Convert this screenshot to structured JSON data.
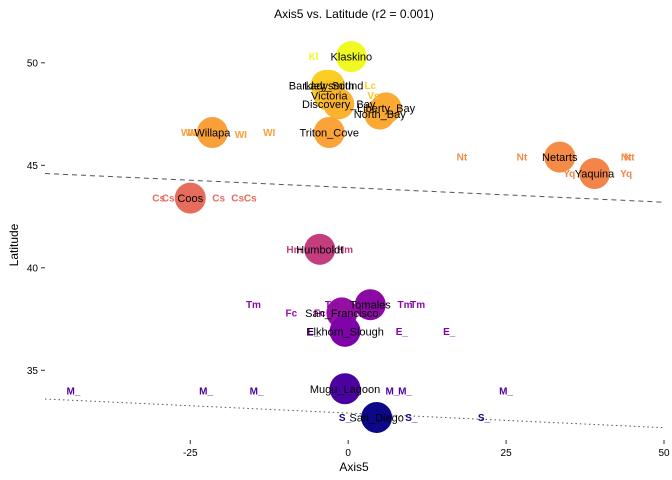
{
  "chart_data": {
    "type": "scatter",
    "title": "Axis5 vs. Latitude (r2 = 0.001)",
    "xlabel": "Axis5",
    "ylabel": "Latitude",
    "xlim": [
      -48,
      50
    ],
    "ylim": [
      31.6,
      51.6
    ],
    "x_ticks": [
      -25,
      0,
      25,
      50
    ],
    "y_ticks": [
      35,
      40,
      45,
      50
    ],
    "grid": false,
    "fit_lines": [
      {
        "style": "dashed",
        "y_at_xmin": 44.6,
        "y_at_xmax": 43.2
      },
      {
        "style": "dotted",
        "y_at_xmin": 33.6,
        "y_at_xmax": 32.2
      }
    ],
    "points": [
      {
        "label": "Klaskino",
        "x": 0.5,
        "y": 50.3,
        "color": "#f0f921"
      },
      {
        "label": "Barkley_Sound",
        "x": -3.5,
        "y": 48.9,
        "color": "#fcce25"
      },
      {
        "label": "Ladysmith",
        "x": -3.0,
        "y": 48.9,
        "color": "#fcce25"
      },
      {
        "label": "Victoria",
        "x": -3.0,
        "y": 48.4,
        "color": "#fcc328"
      },
      {
        "label": "Discovery_Bay",
        "x": -1.5,
        "y": 48.0,
        "color": "#fbb32f"
      },
      {
        "label": "Liberty_Bay",
        "x": 6.0,
        "y": 47.8,
        "color": "#faa932"
      },
      {
        "label": "North_Bay",
        "x": 5.0,
        "y": 47.5,
        "color": "#faa932"
      },
      {
        "label": "Willapa",
        "x": -21.5,
        "y": 46.6,
        "color": "#f9a03b"
      },
      {
        "label": "Triton_Cove",
        "x": -3.0,
        "y": 46.6,
        "color": "#fba238"
      },
      {
        "label": "Netarts",
        "x": 33.5,
        "y": 45.4,
        "color": "#f58c46"
      },
      {
        "label": "Yaquina",
        "x": 39.0,
        "y": 44.6,
        "color": "#f3854b"
      },
      {
        "label": "Coos",
        "x": -25.0,
        "y": 43.4,
        "color": "#e66c5c"
      },
      {
        "label": "Humboldt",
        "x": -4.5,
        "y": 40.9,
        "color": "#c43e7f"
      },
      {
        "label": "Tomales",
        "x": 3.5,
        "y": 38.2,
        "color": "#8b0aa5"
      },
      {
        "label": "San_Francisco",
        "x": -1.0,
        "y": 37.8,
        "color": "#9410a2"
      },
      {
        "label": "Elkhorn_Slough",
        "x": -0.5,
        "y": 36.9,
        "color": "#7e03a8"
      },
      {
        "label": "Mugu_Lagoon",
        "x": -0.5,
        "y": 34.1,
        "color": "#4c02a1"
      },
      {
        "label": "San_Diego",
        "x": 4.5,
        "y": 32.7,
        "color": "#0d0887"
      }
    ],
    "abbreviations": [
      {
        "text": "Kl",
        "x": -5.5,
        "y": 50.3,
        "color": "#f0f921"
      },
      {
        "text": "Lc",
        "x": 3.5,
        "y": 48.9,
        "color": "#fcce25"
      },
      {
        "text": "Vc",
        "x": 4.0,
        "y": 48.4,
        "color": "#fcc328"
      },
      {
        "text": "WI",
        "x": -25.5,
        "y": 46.6,
        "color": "#f9a03b"
      },
      {
        "text": "WI",
        "x": -24.5,
        "y": 46.6,
        "color": "#f9a03b"
      },
      {
        "text": "WI",
        "x": -23.5,
        "y": 46.6,
        "color": "#f9a03b"
      },
      {
        "text": "WI",
        "x": -17.0,
        "y": 46.5,
        "color": "#f9a03b"
      },
      {
        "text": "WI",
        "x": -12.5,
        "y": 46.6,
        "color": "#f9a03b"
      },
      {
        "text": "Nt",
        "x": 18.0,
        "y": 45.4,
        "color": "#f58c46"
      },
      {
        "text": "Nt",
        "x": 27.5,
        "y": 45.4,
        "color": "#f58c46"
      },
      {
        "text": "Nt",
        "x": 44.0,
        "y": 45.4,
        "color": "#f58c46"
      },
      {
        "text": "Nt",
        "x": 44.5,
        "y": 45.4,
        "color": "#f58c46"
      },
      {
        "text": "Yq",
        "x": 35.0,
        "y": 44.6,
        "color": "#f3854b"
      },
      {
        "text": "Yq",
        "x": 44.0,
        "y": 44.6,
        "color": "#f3854b"
      },
      {
        "text": "Cs",
        "x": -30.0,
        "y": 43.4,
        "color": "#e66c5c"
      },
      {
        "text": "Cs",
        "x": -28.5,
        "y": 43.4,
        "color": "#e66c5c"
      },
      {
        "text": "Cs",
        "x": -20.5,
        "y": 43.4,
        "color": "#e66c5c"
      },
      {
        "text": "Cs",
        "x": -17.5,
        "y": 43.4,
        "color": "#e66c5c"
      },
      {
        "text": "Cs",
        "x": -15.5,
        "y": 43.4,
        "color": "#e66c5c"
      },
      {
        "text": "Hm",
        "x": -8.5,
        "y": 40.9,
        "color": "#c43e7f"
      },
      {
        "text": "Hm",
        "x": -0.5,
        "y": 40.9,
        "color": "#c43e7f"
      },
      {
        "text": "Tm",
        "x": -15.0,
        "y": 38.2,
        "color": "#8b0aa5"
      },
      {
        "text": "Tm",
        "x": -2.5,
        "y": 38.2,
        "color": "#8b0aa5"
      },
      {
        "text": "Tm",
        "x": 9.0,
        "y": 38.2,
        "color": "#8b0aa5"
      },
      {
        "text": "Tm",
        "x": 11.0,
        "y": 38.2,
        "color": "#8b0aa5"
      },
      {
        "text": "Fc",
        "x": -9.0,
        "y": 37.8,
        "color": "#9410a2"
      },
      {
        "text": "Fc",
        "x": -4.5,
        "y": 37.8,
        "color": "#9410a2"
      },
      {
        "text": "E_",
        "x": -5.5,
        "y": 36.9,
        "color": "#7e03a8"
      },
      {
        "text": "E_",
        "x": 8.5,
        "y": 36.9,
        "color": "#7e03a8"
      },
      {
        "text": "E_",
        "x": 16.0,
        "y": 36.9,
        "color": "#7e03a8"
      },
      {
        "text": "M_",
        "x": -43.5,
        "y": 34.0,
        "color": "#4c02a1"
      },
      {
        "text": "M_",
        "x": -22.5,
        "y": 34.0,
        "color": "#4c02a1"
      },
      {
        "text": "M_",
        "x": -14.5,
        "y": 34.0,
        "color": "#4c02a1"
      },
      {
        "text": "M_",
        "x": 7.0,
        "y": 34.0,
        "color": "#4c02a1"
      },
      {
        "text": "M_",
        "x": 9.0,
        "y": 34.0,
        "color": "#4c02a1"
      },
      {
        "text": "M_",
        "x": 25.0,
        "y": 34.0,
        "color": "#4c02a1"
      },
      {
        "text": "S_",
        "x": -0.5,
        "y": 32.7,
        "color": "#0d0887"
      },
      {
        "text": "S_",
        "x": 10.0,
        "y": 32.7,
        "color": "#0d0887"
      },
      {
        "text": "S_",
        "x": 21.5,
        "y": 32.7,
        "color": "#0d0887"
      }
    ]
  }
}
